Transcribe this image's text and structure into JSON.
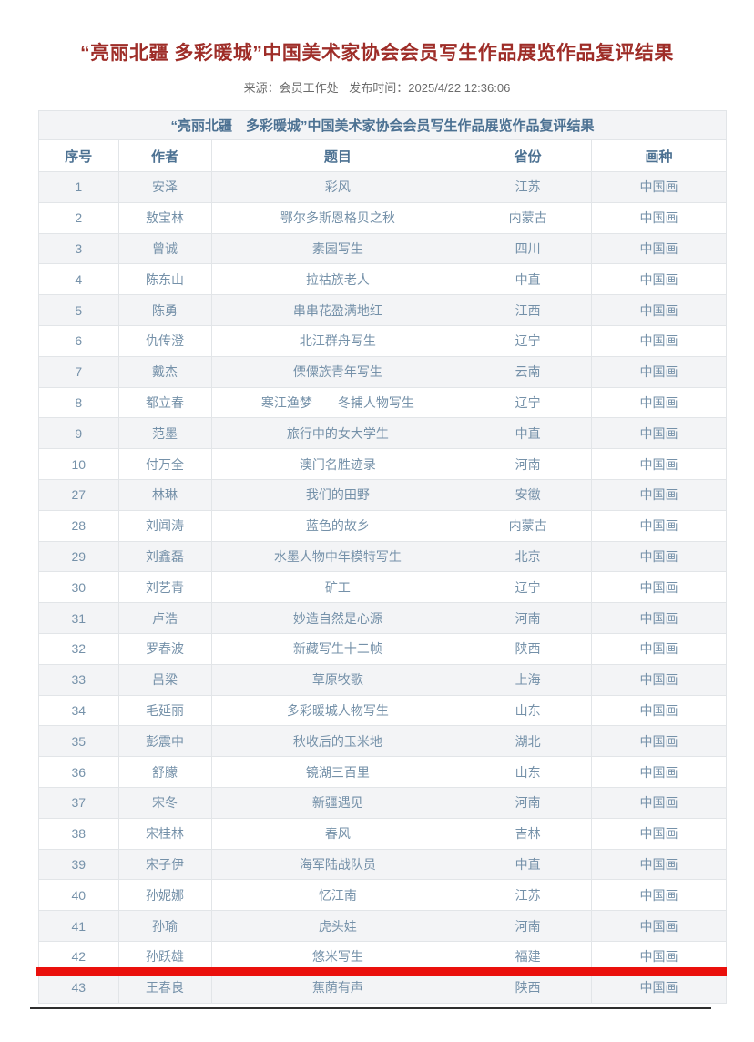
{
  "page": {
    "title": "“亮丽北疆 多彩暖城”中国美术家协会会员写生作品展览作品复评结果",
    "meta": {
      "source": "来源：会员工作处",
      "publish_time": "发布时间：2025/4/22 12:36:06"
    }
  },
  "table": {
    "caption": "“亮丽北疆　多彩暖城”中国美术家协会会员写生作品展览作品复评结果",
    "headers": [
      "序号",
      "作者",
      "题目",
      "省份",
      "画种"
    ],
    "rows": [
      {
        "seq": "1",
        "author": "安泽",
        "title": "彩风",
        "province": "江苏",
        "category": "中国画"
      },
      {
        "seq": "2",
        "author": "敖宝林",
        "title": "鄂尔多斯恩格贝之秋",
        "province": "内蒙古",
        "category": "中国画"
      },
      {
        "seq": "3",
        "author": "曾诚",
        "title": "素园写生",
        "province": "四川",
        "category": "中国画"
      },
      {
        "seq": "4",
        "author": "陈东山",
        "title": "拉祜族老人",
        "province": "中直",
        "category": "中国画"
      },
      {
        "seq": "5",
        "author": "陈勇",
        "title": "串串花盈满地红",
        "province": "江西",
        "category": "中国画"
      },
      {
        "seq": "6",
        "author": "仇传澄",
        "title": "北江群舟写生",
        "province": "辽宁",
        "category": "中国画"
      },
      {
        "seq": "7",
        "author": "戴杰",
        "title": "傈僳族青年写生",
        "province": "云南",
        "category": "中国画"
      },
      {
        "seq": "8",
        "author": "都立春",
        "title": "寒江渔梦——冬捕人物写生",
        "province": "辽宁",
        "category": "中国画"
      },
      {
        "seq": "9",
        "author": "范墨",
        "title": "旅行中的女大学生",
        "province": "中直",
        "category": "中国画"
      },
      {
        "seq": "10",
        "author": "付万全",
        "title": "澳门名胜迹录",
        "province": "河南",
        "category": "中国画"
      },
      {
        "seq": "27",
        "author": "林琳",
        "title": "我们的田野",
        "province": "安徽",
        "category": "中国画"
      },
      {
        "seq": "28",
        "author": "刘闻涛",
        "title": "蓝色的故乡",
        "province": "内蒙古",
        "category": "中国画"
      },
      {
        "seq": "29",
        "author": "刘鑫磊",
        "title": "水墨人物中年模特写生",
        "province": "北京",
        "category": "中国画"
      },
      {
        "seq": "30",
        "author": "刘艺青",
        "title": "矿工",
        "province": "辽宁",
        "category": "中国画"
      },
      {
        "seq": "31",
        "author": "卢浩",
        "title": "妙造自然是心源",
        "province": "河南",
        "category": "中国画"
      },
      {
        "seq": "32",
        "author": "罗春波",
        "title": "新藏写生十二帧",
        "province": "陕西",
        "category": "中国画"
      },
      {
        "seq": "33",
        "author": "吕梁",
        "title": "草原牧歌",
        "province": "上海",
        "category": "中国画"
      },
      {
        "seq": "34",
        "author": "毛延丽",
        "title": "多彩暖城人物写生",
        "province": "山东",
        "category": "中国画"
      },
      {
        "seq": "35",
        "author": "彭震中",
        "title": "秋收后的玉米地",
        "province": "湖北",
        "category": "中国画"
      },
      {
        "seq": "36",
        "author": "舒朦",
        "title": "镜湖三百里",
        "province": "山东",
        "category": "中国画"
      },
      {
        "seq": "37",
        "author": "宋冬",
        "title": "新疆遇见",
        "province": "河南",
        "category": "中国画"
      },
      {
        "seq": "38",
        "author": "宋桂林",
        "title": "春风",
        "province": "吉林",
        "category": "中国画"
      },
      {
        "seq": "39",
        "author": "宋子伊",
        "title": "海军陆战队员",
        "province": "中直",
        "category": "中国画"
      },
      {
        "seq": "40",
        "author": "孙妮娜",
        "title": "忆江南",
        "province": "江苏",
        "category": "中国画"
      },
      {
        "seq": "41",
        "author": "孙瑜",
        "title": "虎头娃",
        "province": "河南",
        "category": "中国画"
      },
      {
        "seq": "42",
        "author": "孙跃雄",
        "title": "悠米写生",
        "province": "福建",
        "category": "中国画"
      },
      {
        "seq": "43",
        "author": "王春良",
        "title": "蕉荫有声",
        "province": "陕西",
        "category": "中国画"
      }
    ]
  },
  "annotation": {
    "red_line_after_seq": "42"
  },
  "colors": {
    "title_red": "#9e2d28",
    "meta_gray": "#6b6b6b",
    "header_text": "#4c7192",
    "cell_text": "#7591a9",
    "stripe_bg": "#f3f4f6",
    "border": "#e2e5e8",
    "red_line": "#ea100c",
    "crop_line": "#2e2e2e"
  }
}
